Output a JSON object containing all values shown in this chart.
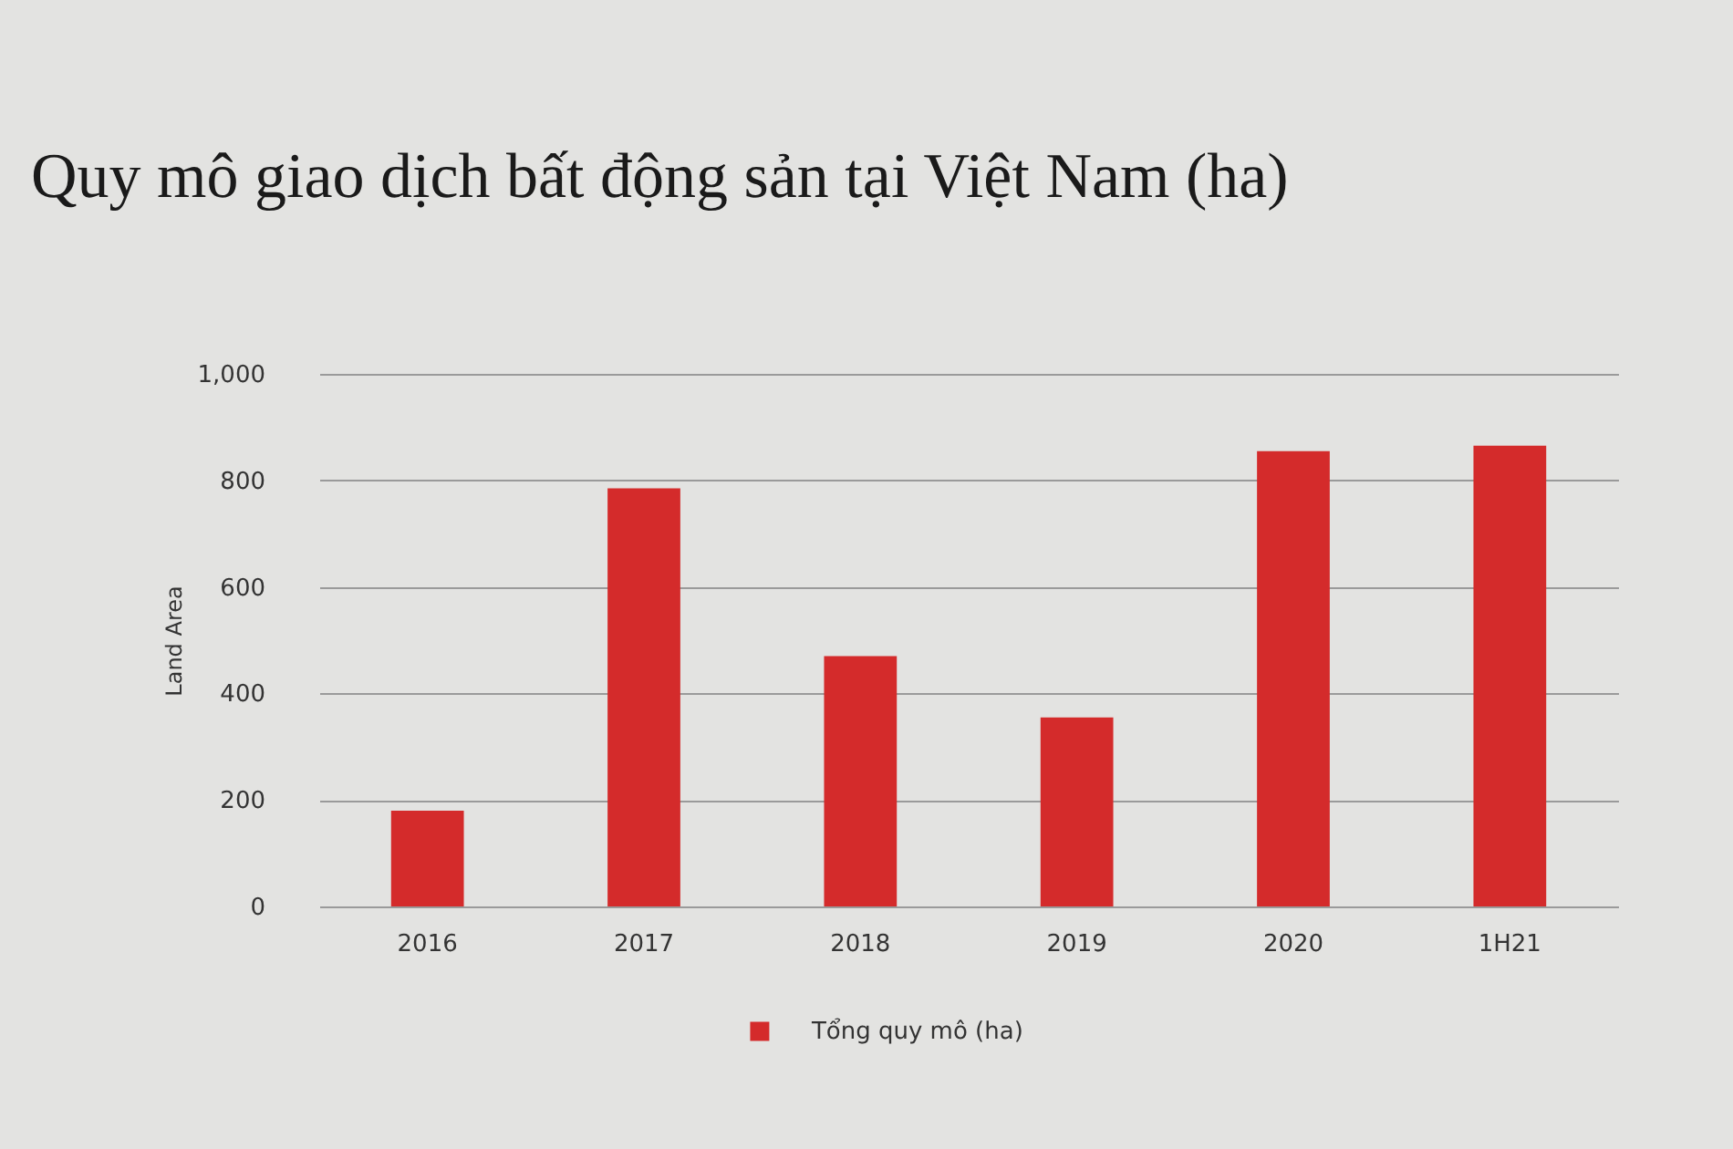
{
  "chart_data": {
    "type": "bar",
    "title": "Quy mô giao dịch bất động sản tại Việt Nam (ha)",
    "categories": [
      "2016",
      "2017",
      "2018",
      "2019",
      "2020",
      "1H21"
    ],
    "series": [
      {
        "name": "Tổng quy mô (ha)",
        "color": "#d42b2b",
        "values": [
          180,
          785,
          470,
          355,
          855,
          865
        ]
      }
    ],
    "ylabel": "Land Area",
    "ylim": [
      0,
      1000
    ],
    "yticks": [
      0,
      200,
      400,
      600,
      800,
      {
        "value": 1000,
        "label": "1,000"
      }
    ],
    "grid": "y",
    "legend": "bottom"
  }
}
